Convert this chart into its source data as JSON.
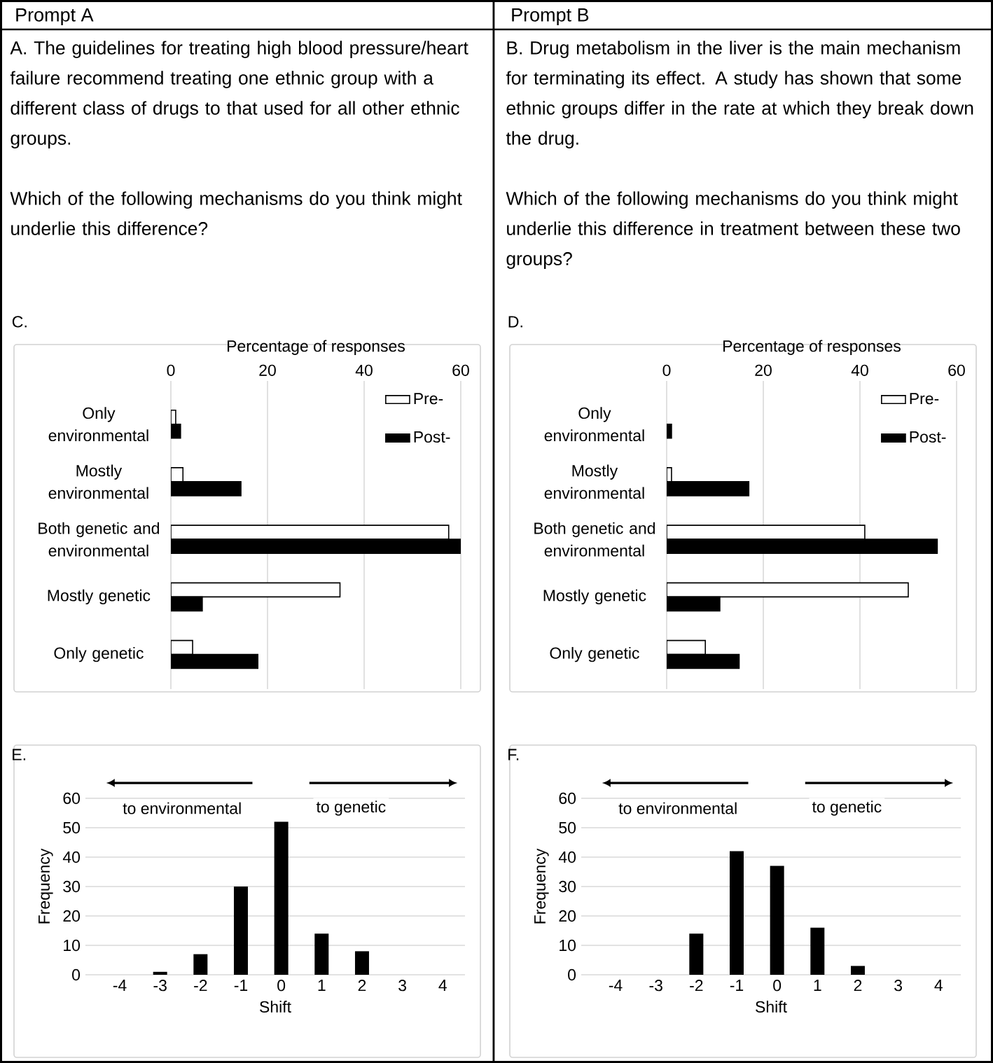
{
  "chart_data": [
    {
      "type": "other",
      "title": "Prompt A",
      "annotations": [
        "A.  The guidelines for treating high blood pressure/heart failure recommend treating one ethnic group with a different class of drugs to that used for all other ethnic groups.",
        "Which of the following mechanisms do you think might underlie this difference?"
      ]
    },
    {
      "type": "other",
      "title": "Prompt B",
      "annotations": [
        "B.  Drug metabolism in the liver is the main mechanism for terminating its effect. A study has shown that some ethnic groups differ in the rate at which they break down the drug.",
        "Which of the following mechanisms do you think might underlie this difference in treatment between these two groups?"
      ]
    },
    {
      "type": "bar",
      "orientation": "horizontal",
      "title": "C.",
      "xlabel": "Percentage of responses",
      "categories": [
        "Only environmental",
        "Mostly environmental",
        "Both genetic and environmental",
        "Mostly genetic",
        "Only genetic"
      ],
      "series": [
        {
          "name": "Pre-",
          "color": "#ffffff",
          "values": [
            1,
            2.5,
            57.5,
            35,
            4.5
          ]
        },
        {
          "name": "Post-",
          "color": "#000000",
          "values": [
            2,
            14.5,
            60,
            6.5,
            18
          ]
        }
      ],
      "xlim": [
        0,
        60
      ],
      "xticks": [
        0,
        20,
        40,
        60
      ],
      "grid": "x",
      "legend": "top right"
    },
    {
      "type": "bar",
      "orientation": "horizontal",
      "title": "D.",
      "xlabel": "Percentage of responses",
      "categories": [
        "Only environmental",
        "Mostly environmental",
        "Both genetic and environmental",
        "Mostly genetic",
        "Only genetic"
      ],
      "series": [
        {
          "name": "Pre-",
          "color": "#ffffff",
          "values": [
            null,
            1,
            41,
            50,
            8
          ]
        },
        {
          "name": "Post-",
          "color": "#000000",
          "values": [
            1,
            17,
            56,
            11,
            15
          ]
        }
      ],
      "xlim": [
        0,
        60
      ],
      "xticks": [
        0,
        20,
        40,
        60
      ],
      "grid": "x",
      "legend": "top right"
    },
    {
      "type": "bar",
      "title": "E.",
      "xlabel": "Shift",
      "ylabel": "Frequency",
      "categories": [
        "-4",
        "-3",
        "-2",
        "-1",
        "0",
        "1",
        "2",
        "3",
        "4"
      ],
      "values": [
        0,
        1,
        7,
        30,
        52,
        14,
        8,
        0,
        0
      ],
      "color": "#000000",
      "ylim": [
        0,
        60
      ],
      "yticks": [
        0,
        10,
        20,
        30,
        40,
        50,
        60
      ],
      "grid": "y",
      "annotations": [
        "to environmental",
        "to genetic"
      ]
    },
    {
      "type": "bar",
      "title": "F.",
      "xlabel": "Shift",
      "ylabel": "Frequency",
      "categories": [
        "-4",
        "-3",
        "-2",
        "-1",
        "0",
        "1",
        "2",
        "3",
        "4"
      ],
      "values": [
        0,
        0,
        14,
        42,
        37,
        16,
        3,
        0,
        0
      ],
      "color": "#000000",
      "ylim": [
        0,
        60
      ],
      "yticks": [
        0,
        10,
        20,
        30,
        40,
        50,
        60
      ],
      "grid": "y",
      "annotations": [
        "to environmental",
        "to genetic"
      ]
    }
  ]
}
